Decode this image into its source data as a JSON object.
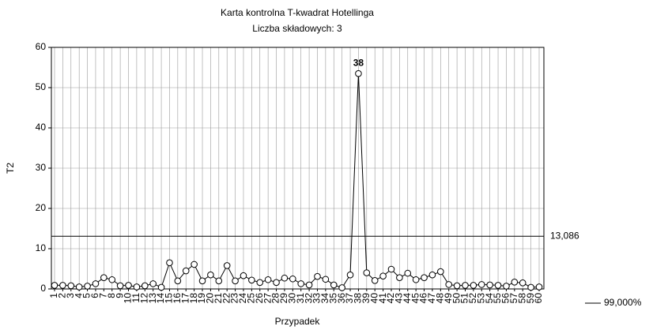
{
  "chart_data": {
    "type": "line",
    "title": "Karta kontrolna T-kwadrat Hotellinga",
    "subtitle": "Liczba składowych: 3",
    "x_label": "Przypadek",
    "y_label": "T2",
    "categories": [
      "1",
      "2",
      "3",
      "4",
      "5",
      "6",
      "7",
      "8",
      "9",
      "10",
      "11",
      "12",
      "13",
      "14",
      "15",
      "16",
      "17",
      "18",
      "19",
      "20",
      "21",
      "22",
      "23",
      "24",
      "25",
      "26",
      "27",
      "28",
      "29",
      "30",
      "31",
      "32",
      "33",
      "34",
      "35",
      "36",
      "37",
      "38",
      "39",
      "40",
      "41",
      "42",
      "43",
      "44",
      "45",
      "46",
      "47",
      "48",
      "49",
      "50",
      "51",
      "52",
      "53",
      "54",
      "55",
      "56",
      "57",
      "58",
      "59",
      "60"
    ],
    "values": [
      0.9,
      0.9,
      0.8,
      0.5,
      0.7,
      1.3,
      2.8,
      2.3,
      0.8,
      0.9,
      0.5,
      0.8,
      1.3,
      0.4,
      6.5,
      2.0,
      4.5,
      6.1,
      2.0,
      3.5,
      2.0,
      5.8,
      2.0,
      3.3,
      2.2,
      1.6,
      2.3,
      1.6,
      2.7,
      2.5,
      1.3,
      1.0,
      3.1,
      2.4,
      1.0,
      0.3,
      3.5,
      53.5,
      4.0,
      2.1,
      3.2,
      4.9,
      2.8,
      3.9,
      2.3,
      2.8,
      3.5,
      4.3,
      1.1,
      0.8,
      0.9,
      0.9,
      1.1,
      1.0,
      0.9,
      0.7,
      1.7,
      1.5,
      0.4,
      0.5
    ],
    "color": "#000000",
    "ylim": [
      0,
      60
    ],
    "yticks": [
      0,
      10,
      20,
      30,
      40,
      50,
      60
    ],
    "grid": true,
    "control_limit": {
      "value": 13.086,
      "label": "13,086"
    },
    "legend": "99,000%",
    "annotations": [
      {
        "text": "38"
      }
    ]
  }
}
